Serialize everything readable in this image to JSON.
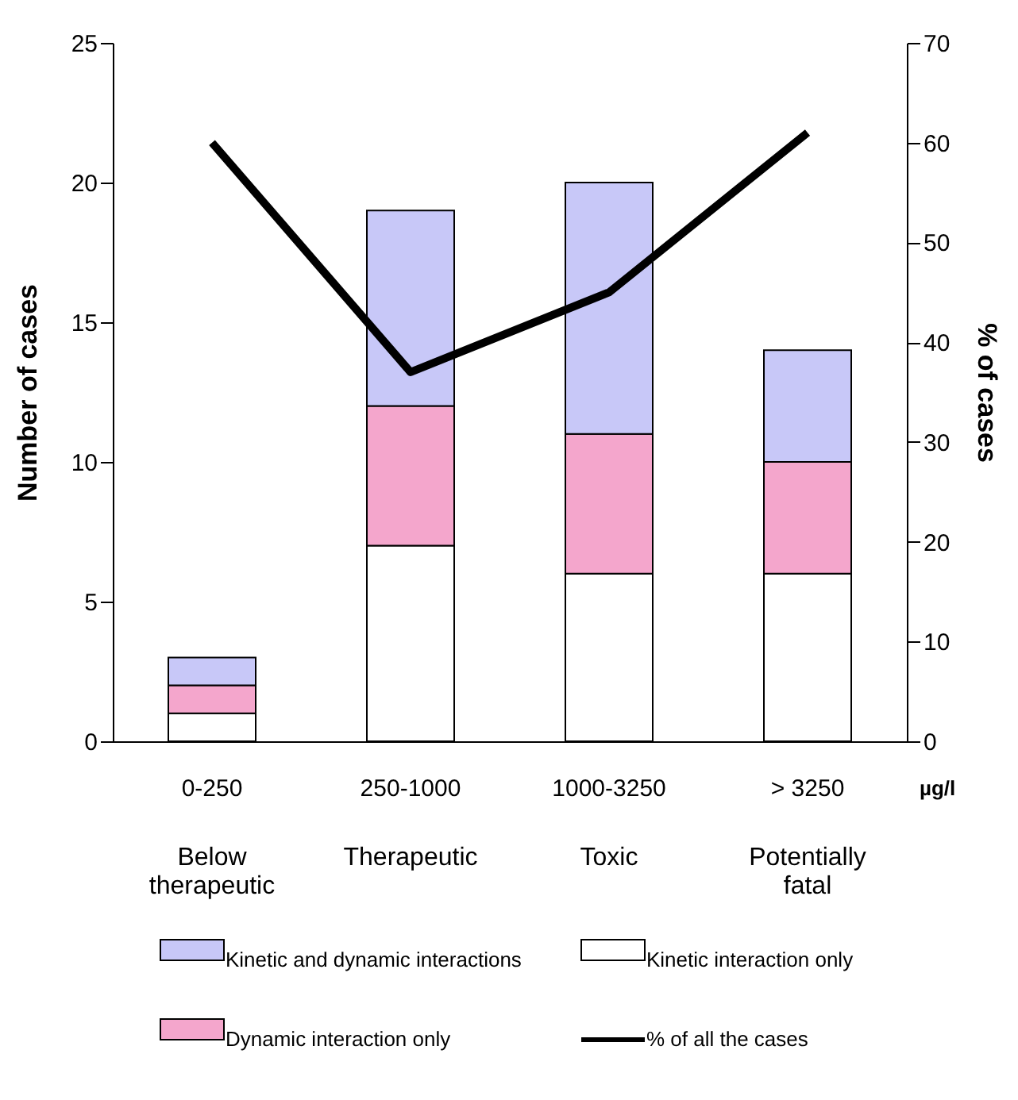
{
  "chart_data": {
    "type": "bar",
    "stacked": true,
    "categories": [
      "0-250",
      "250-1000",
      "1000-3250",
      "> 3250"
    ],
    "ylabel": "Number of cases",
    "y2label": "% of cases",
    "ylim": [
      0,
      25
    ],
    "yticks": [
      0,
      5,
      10,
      15,
      20,
      25
    ],
    "y2lim": [
      0,
      70
    ],
    "y2ticks": [
      0,
      10,
      20,
      30,
      40,
      50,
      60,
      70
    ],
    "grid": false,
    "legend": "bottom",
    "series": [
      {
        "name": "Kinetic interaction only",
        "color": "#ffffff",
        "values": [
          1,
          7,
          6,
          6
        ]
      },
      {
        "name": "Dynamic interaction only",
        "color": "#f4a6cc",
        "values": [
          1,
          5,
          5,
          4
        ]
      },
      {
        "name": "Kinetic and dynamic interactions",
        "color": "#c8c8f8",
        "values": [
          1,
          7,
          9,
          4
        ]
      },
      {
        "name": "% of all the cases",
        "type": "line",
        "axis": "y2",
        "color": "#000000",
        "values": [
          60,
          37,
          45,
          61
        ]
      }
    ],
    "annotations": [
      "Below therapeutic",
      "Therapeutic",
      "Toxic",
      "Potentially fatal",
      "µg/l"
    ]
  }
}
